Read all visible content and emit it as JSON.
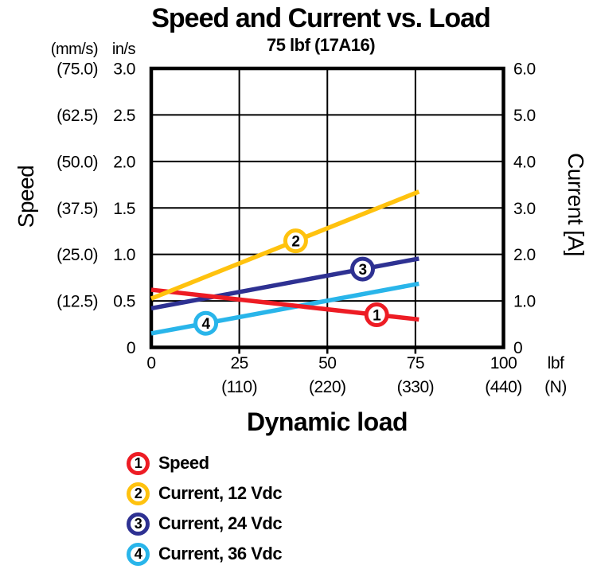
{
  "title": "Speed and Current vs. Load",
  "subtitle": "75 lbf (17A16)",
  "colors": {
    "speed": "#ed1c24",
    "current_12v": "#ffc20e",
    "current_24v": "#2e3192",
    "current_36v": "#29b5ea",
    "axis": "#000000",
    "background": "#ffffff",
    "text": "#000000"
  },
  "left_axis": {
    "title": "Speed",
    "unit_secondary": "(mm/s)",
    "unit_primary": "in/s",
    "ticks_in_s": [
      "3.0",
      "2.5",
      "2.0",
      "1.5",
      "1.0",
      "0.5",
      "0"
    ],
    "ticks_mm_s": [
      "(75.0)",
      "(62.5)",
      "(50.0)",
      "(37.5)",
      "(25.0)",
      "(12.5)",
      ""
    ]
  },
  "right_axis": {
    "title": "Current [A]",
    "ticks": [
      "6.0",
      "5.0",
      "4.0",
      "3.0",
      "2.0",
      "1.0",
      "0"
    ]
  },
  "x_axis": {
    "title": "Dynamic load",
    "unit_lbf": "lbf",
    "unit_n": "(N)",
    "ticks_lbf": [
      "0",
      "25",
      "50",
      "75",
      "100"
    ],
    "ticks_n": [
      "",
      "(110)",
      "(220)",
      "(330)",
      "(440)"
    ]
  },
  "chart_data": {
    "type": "line",
    "title": "Speed and Current vs. Load",
    "subtitle": "75 lbf (17A16)",
    "xlabel": "Dynamic load",
    "x_units": [
      "lbf",
      "N"
    ],
    "x_range_lbf": [
      0,
      100
    ],
    "x_ticks_lbf": [
      0,
      25,
      50,
      75,
      100
    ],
    "x_ticks_n": [
      0,
      110,
      220,
      330,
      440
    ],
    "y_left": {
      "label": "Speed",
      "unit": "in/s",
      "range": [
        0,
        3.0
      ],
      "tick_step": 0.5,
      "secondary_unit": "mm/s",
      "secondary_range": [
        0,
        75.0
      ]
    },
    "y_right": {
      "label": "Current [A]",
      "unit": "A",
      "range": [
        0,
        6.0
      ],
      "tick_step": 1.0
    },
    "grid": true,
    "legend_position": "bottom-left",
    "series": [
      {
        "id": "1",
        "name": "Speed",
        "axis": "left",
        "color": "#ed1c24",
        "x": [
          0,
          76
        ],
        "y": [
          0.62,
          0.3
        ],
        "marker_x": 64,
        "draw_order": 2
      },
      {
        "id": "2",
        "name": "Current, 12 Vdc",
        "axis": "right",
        "color": "#ffc20e",
        "x": [
          0,
          76
        ],
        "y": [
          1.05,
          3.35
        ],
        "marker_x": 41,
        "draw_order": 3
      },
      {
        "id": "3",
        "name": "Current, 24 Vdc",
        "axis": "right",
        "color": "#2e3192",
        "x": [
          0,
          76
        ],
        "y": [
          0.84,
          1.91
        ],
        "marker_x": 60,
        "draw_order": 0
      },
      {
        "id": "4",
        "name": "Current, 36 Vdc",
        "axis": "right",
        "color": "#29b5ea",
        "x": [
          0,
          76
        ],
        "y": [
          0.3,
          1.37
        ],
        "marker_x": 15.5,
        "draw_order": 1
      }
    ]
  }
}
